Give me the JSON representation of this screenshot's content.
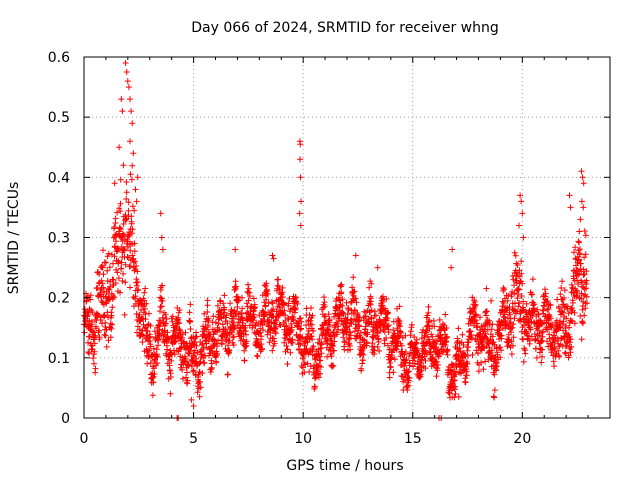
{
  "chart_data": {
    "type": "scatter",
    "title": "Day 066 of 2024, SRMTID for receiver whng",
    "xlabel": "GPS time / hours",
    "ylabel": "SRMTID / TECUs",
    "xlim": [
      0,
      24
    ],
    "ylim": [
      0,
      0.6
    ],
    "xticks": [
      0,
      5,
      10,
      15,
      20
    ],
    "yticks": [
      0,
      0.1,
      0.2,
      0.3,
      0.4,
      0.5,
      0.6
    ],
    "xtick_labels": [
      "0",
      "5",
      "10",
      "15",
      "20"
    ],
    "ytick_labels": [
      "0",
      "0.1",
      "0.2",
      "0.3",
      "0.4",
      "0.5",
      "0.6"
    ],
    "grid": true,
    "marker": "+",
    "series": [
      {
        "name": "SRMTID",
        "color": "#ff0000",
        "points_per_hour": 120,
        "time_range": [
          0.0,
          22.95
        ],
        "trend": [
          [
            0.0,
            0.16
          ],
          [
            0.3,
            0.14
          ],
          [
            0.6,
            0.17
          ],
          [
            1.0,
            0.19
          ],
          [
            1.3,
            0.23
          ],
          [
            1.7,
            0.28
          ],
          [
            1.9,
            0.33
          ],
          [
            2.2,
            0.27
          ],
          [
            2.5,
            0.2
          ],
          [
            2.8,
            0.14
          ],
          [
            3.0,
            0.1
          ],
          [
            3.3,
            0.12
          ],
          [
            3.6,
            0.16
          ],
          [
            4.0,
            0.12
          ],
          [
            4.5,
            0.13
          ],
          [
            5.0,
            0.09
          ],
          [
            5.3,
            0.11
          ],
          [
            6.0,
            0.14
          ],
          [
            7.0,
            0.16
          ],
          [
            8.0,
            0.15
          ],
          [
            8.7,
            0.18
          ],
          [
            9.3,
            0.16
          ],
          [
            10.0,
            0.14
          ],
          [
            10.5,
            0.1
          ],
          [
            11.0,
            0.14
          ],
          [
            12.0,
            0.17
          ],
          [
            12.8,
            0.14
          ],
          [
            13.5,
            0.17
          ],
          [
            14.0,
            0.13
          ],
          [
            14.5,
            0.11
          ],
          [
            15.0,
            0.09
          ],
          [
            15.5,
            0.12
          ],
          [
            16.0,
            0.13
          ],
          [
            16.5,
            0.12
          ],
          [
            16.8,
            0.07
          ],
          [
            17.3,
            0.1
          ],
          [
            17.8,
            0.15
          ],
          [
            18.3,
            0.13
          ],
          [
            18.8,
            0.11
          ],
          [
            19.3,
            0.17
          ],
          [
            19.8,
            0.21
          ],
          [
            20.3,
            0.15
          ],
          [
            21.0,
            0.16
          ],
          [
            21.5,
            0.14
          ],
          [
            22.0,
            0.15
          ],
          [
            22.5,
            0.22
          ],
          [
            22.9,
            0.25
          ]
        ],
        "spread": [
          [
            0.0,
            0.05
          ],
          [
            1.5,
            0.1
          ],
          [
            2.0,
            0.13
          ],
          [
            2.5,
            0.08
          ],
          [
            3.0,
            0.05
          ],
          [
            9.0,
            0.05
          ],
          [
            12.0,
            0.05
          ],
          [
            17.0,
            0.04
          ],
          [
            19.8,
            0.07
          ],
          [
            21.0,
            0.05
          ],
          [
            22.6,
            0.08
          ],
          [
            22.9,
            0.09
          ]
        ],
        "peaks": [
          [
            1.7,
            0.53
          ],
          [
            1.75,
            0.51
          ],
          [
            1.9,
            0.59
          ],
          [
            1.95,
            0.575
          ],
          [
            2.0,
            0.56
          ],
          [
            2.05,
            0.55
          ],
          [
            2.1,
            0.53
          ],
          [
            2.15,
            0.51
          ],
          [
            2.2,
            0.49
          ],
          [
            2.1,
            0.46
          ],
          [
            2.25,
            0.44
          ],
          [
            1.6,
            0.45
          ],
          [
            1.8,
            0.42
          ],
          [
            2.35,
            0.38
          ],
          [
            2.4,
            0.36
          ],
          [
            2.45,
            0.4
          ],
          [
            1.4,
            0.39
          ],
          [
            3.5,
            0.34
          ],
          [
            3.55,
            0.3
          ],
          [
            3.6,
            0.28
          ],
          [
            9.85,
            0.46
          ],
          [
            9.87,
            0.455
          ],
          [
            9.86,
            0.43
          ],
          [
            9.88,
            0.4
          ],
          [
            9.9,
            0.36
          ],
          [
            9.84,
            0.34
          ],
          [
            9.89,
            0.32
          ],
          [
            8.6,
            0.27
          ],
          [
            8.65,
            0.265
          ],
          [
            6.9,
            0.28
          ],
          [
            12.4,
            0.27
          ],
          [
            13.4,
            0.25
          ],
          [
            16.8,
            0.28
          ],
          [
            16.75,
            0.25
          ],
          [
            19.9,
            0.37
          ],
          [
            19.95,
            0.36
          ],
          [
            20.0,
            0.34
          ],
          [
            19.85,
            0.32
          ],
          [
            20.05,
            0.3
          ],
          [
            22.15,
            0.37
          ],
          [
            22.2,
            0.35
          ],
          [
            22.7,
            0.41
          ],
          [
            22.75,
            0.4
          ],
          [
            22.8,
            0.39
          ],
          [
            22.72,
            0.36
          ],
          [
            22.78,
            0.35
          ],
          [
            22.65,
            0.33
          ],
          [
            22.6,
            0.31
          ],
          [
            4.9,
            0.03
          ],
          [
            5.0,
            0.02
          ],
          [
            16.95,
            0.04
          ],
          [
            17.1,
            0.035
          ]
        ],
        "zero_points": [
          4.25,
          4.3,
          16.2,
          16.3
        ]
      }
    ]
  }
}
